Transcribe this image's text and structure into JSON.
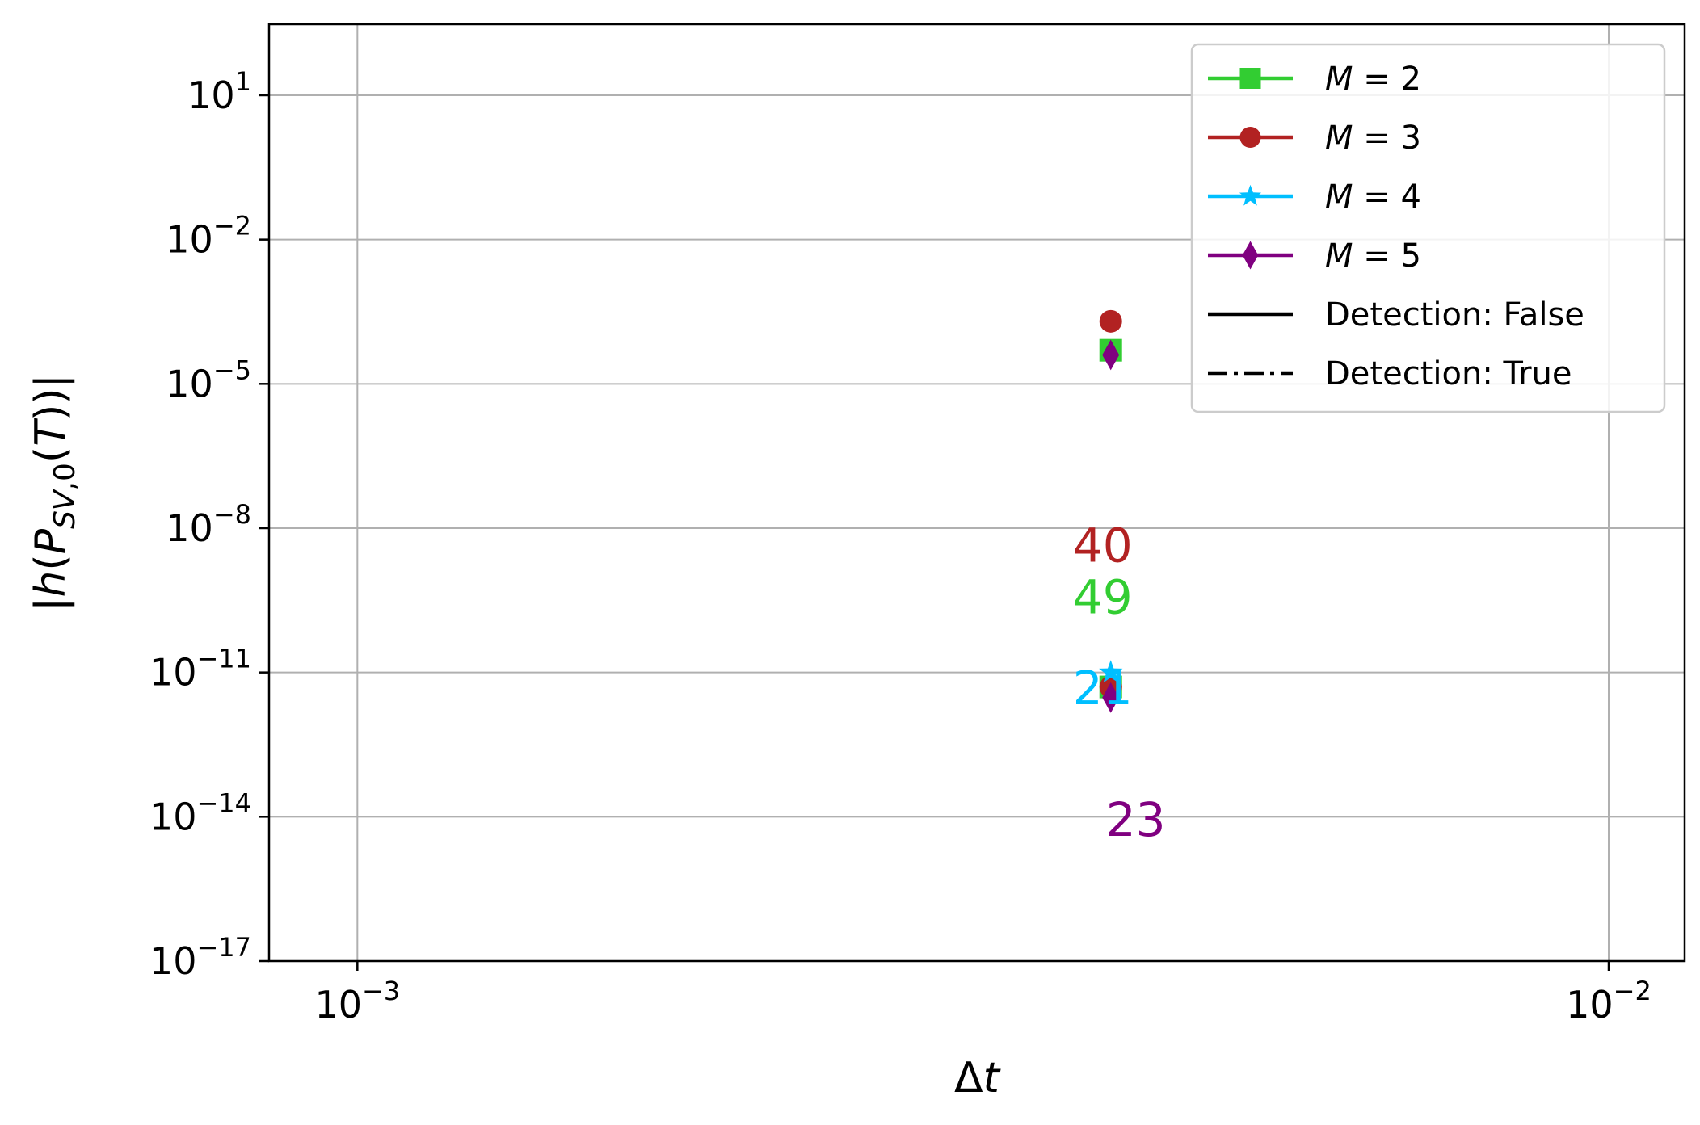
{
  "chart_data": {
    "type": "scatter",
    "title": "",
    "xlabel": "Δt",
    "ylabel": "|h(P_{SV,0}(T))|",
    "xscale": "log",
    "yscale": "log",
    "xlim": [
      0.00085,
      0.0115
    ],
    "ylim": [
      1e-17,
      300
    ],
    "grid": true,
    "legend_position": "top-right",
    "x_ticks": [
      {
        "value": 0.001,
        "base": "10",
        "exp": "−3"
      },
      {
        "value": 0.01,
        "base": "10",
        "exp": "−2"
      }
    ],
    "y_ticks": [
      {
        "value": 10,
        "base": "10",
        "exp": "1"
      },
      {
        "value": 0.01,
        "base": "10",
        "exp": "−2"
      },
      {
        "value": 1e-05,
        "base": "10",
        "exp": "−5"
      },
      {
        "value": 1e-08,
        "base": "10",
        "exp": "−8"
      },
      {
        "value": 1e-11,
        "base": "10",
        "exp": "−11"
      },
      {
        "value": 1e-14,
        "base": "10",
        "exp": "−14"
      },
      {
        "value": 1e-17,
        "base": "10",
        "exp": "−17"
      }
    ],
    "series": [
      {
        "name": "M = 2",
        "var": "M",
        "num": "2",
        "color": "#32cd32",
        "marker": "square",
        "points": [
          {
            "x": 0.004,
            "y": 5e-05
          },
          {
            "x": 0.004,
            "y": 5e-12
          }
        ]
      },
      {
        "name": "M = 3",
        "var": "M",
        "num": "3",
        "color": "#b22222",
        "marker": "circle",
        "points": [
          {
            "x": 0.004,
            "y": 0.0002
          },
          {
            "x": 0.004,
            "y": 5e-12
          }
        ]
      },
      {
        "name": "M = 4",
        "var": "M",
        "num": "4",
        "color": "#00bfff",
        "marker": "star",
        "points": [
          {
            "x": 0.004,
            "y": 1e-11
          }
        ]
      },
      {
        "name": "M = 5",
        "var": "M",
        "num": "5",
        "color": "#800080",
        "marker": "diamond",
        "points": [
          {
            "x": 0.004,
            "y": 4e-05
          },
          {
            "x": 0.004,
            "y": 3e-12
          }
        ]
      }
    ],
    "legend_extra": [
      {
        "label": "Detection: False",
        "style": "solid"
      },
      {
        "label": "Detection: True",
        "style": "dashdot"
      }
    ],
    "annotations": [
      {
        "text": "40",
        "x": 0.004,
        "y": 2e-09,
        "color": "#b22222",
        "anchor": "middle"
      },
      {
        "text": "49",
        "x": 0.004,
        "y": 1.7e-10,
        "color": "#32cd32",
        "anchor": "middle"
      },
      {
        "text": "21",
        "x": 0.004,
        "y": 2.2e-12,
        "color": "#00bfff",
        "anchor": "middle"
      },
      {
        "text": "23",
        "x": 0.004,
        "y": 4e-15,
        "color": "#800080",
        "anchor": "start"
      }
    ]
  }
}
